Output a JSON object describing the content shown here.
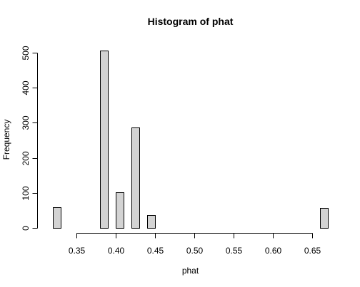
{
  "chart_data": {
    "type": "bar",
    "title": "Histogram of phat",
    "xlabel": "phat",
    "ylabel": "Frequency",
    "xlim": [
      0.315,
      0.675
    ],
    "ylim": [
      0,
      512
    ],
    "bin_width": 0.01,
    "bins": [
      {
        "x0": 0.32,
        "x1": 0.33,
        "value": 58
      },
      {
        "x0": 0.33,
        "x1": 0.34,
        "value": 0
      },
      {
        "x0": 0.34,
        "x1": 0.35,
        "value": 0
      },
      {
        "x0": 0.35,
        "x1": 0.36,
        "value": 0
      },
      {
        "x0": 0.36,
        "x1": 0.37,
        "value": 0
      },
      {
        "x0": 0.37,
        "x1": 0.38,
        "value": 0
      },
      {
        "x0": 0.38,
        "x1": 0.39,
        "value": 505
      },
      {
        "x0": 0.39,
        "x1": 0.4,
        "value": 0
      },
      {
        "x0": 0.4,
        "x1": 0.41,
        "value": 102
      },
      {
        "x0": 0.41,
        "x1": 0.42,
        "value": 0
      },
      {
        "x0": 0.42,
        "x1": 0.43,
        "value": 287
      },
      {
        "x0": 0.43,
        "x1": 0.44,
        "value": 0
      },
      {
        "x0": 0.44,
        "x1": 0.45,
        "value": 37
      },
      {
        "x0": 0.45,
        "x1": 0.46,
        "value": 0
      },
      {
        "x0": 0.46,
        "x1": 0.47,
        "value": 0
      },
      {
        "x0": 0.47,
        "x1": 0.48,
        "value": 0
      },
      {
        "x0": 0.48,
        "x1": 0.49,
        "value": 0
      },
      {
        "x0": 0.49,
        "x1": 0.5,
        "value": 0
      },
      {
        "x0": 0.5,
        "x1": 0.51,
        "value": 0
      },
      {
        "x0": 0.51,
        "x1": 0.52,
        "value": 0
      },
      {
        "x0": 0.52,
        "x1": 0.53,
        "value": 0
      },
      {
        "x0": 0.53,
        "x1": 0.54,
        "value": 0
      },
      {
        "x0": 0.54,
        "x1": 0.55,
        "value": 0
      },
      {
        "x0": 0.55,
        "x1": 0.56,
        "value": 0
      },
      {
        "x0": 0.56,
        "x1": 0.57,
        "value": 0
      },
      {
        "x0": 0.57,
        "x1": 0.58,
        "value": 0
      },
      {
        "x0": 0.58,
        "x1": 0.59,
        "value": 0
      },
      {
        "x0": 0.59,
        "x1": 0.6,
        "value": 0
      },
      {
        "x0": 0.6,
        "x1": 0.61,
        "value": 0
      },
      {
        "x0": 0.61,
        "x1": 0.62,
        "value": 0
      },
      {
        "x0": 0.62,
        "x1": 0.63,
        "value": 0
      },
      {
        "x0": 0.63,
        "x1": 0.64,
        "value": 0
      },
      {
        "x0": 0.64,
        "x1": 0.65,
        "value": 0
      },
      {
        "x0": 0.65,
        "x1": 0.66,
        "value": 0
      },
      {
        "x0": 0.66,
        "x1": 0.67,
        "value": 56
      }
    ],
    "x_ticks": [
      0.35,
      0.4,
      0.45,
      0.5,
      0.55,
      0.6,
      0.65
    ],
    "x_tick_labels": [
      "0.35",
      "0.40",
      "0.45",
      "0.50",
      "0.55",
      "0.60",
      "0.65"
    ],
    "y_ticks": [
      0,
      100,
      200,
      300,
      400,
      500
    ],
    "y_tick_labels": [
      "0",
      "100",
      "200",
      "300",
      "400",
      "500"
    ],
    "grid": false,
    "legend": "none",
    "colors": {
      "bar_fill": "#d3d3d3",
      "bar_stroke": "#000000",
      "axis": "#000000",
      "background": "#ffffff"
    }
  }
}
